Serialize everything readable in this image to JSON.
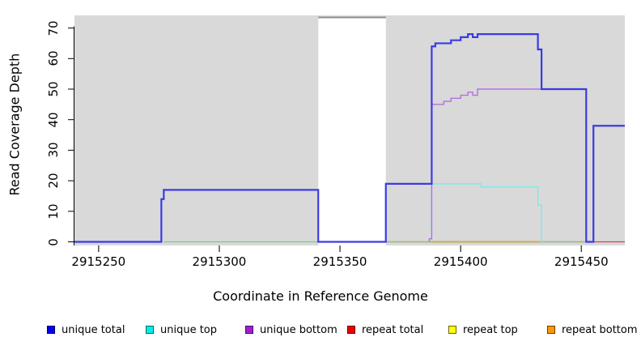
{
  "figure": {
    "x_title": "Coordinate in Reference Genome",
    "y_title": "Read Coverage Depth"
  },
  "chart_data": {
    "type": "line",
    "subtype": "step-function read coverage plot",
    "title": "",
    "xlabel": "Coordinate in Reference Genome",
    "ylabel": "Read Coverage Depth",
    "xlim": [
      2915240,
      2915468
    ],
    "ylim": [
      0,
      74
    ],
    "x_ticks": [
      2915250,
      2915300,
      2915350,
      2915400,
      2915450
    ],
    "y_ticks": [
      0,
      10,
      20,
      30,
      40,
      50,
      60,
      70
    ],
    "grid": false,
    "legend_position": "bottom",
    "plot_bg_color": "#d9d9d9",
    "masked_region": {
      "start": 2915341,
      "end": 2915369,
      "fill": "#ffffff",
      "top_border_color": "#8f8f8f"
    },
    "series": [
      {
        "name": "repeat top",
        "color": "#e6e600",
        "line_width": 1.3,
        "start_at_zero": false,
        "segments": [
          [
            2915369,
            2915434,
            0
          ]
        ]
      },
      {
        "name": "repeat total",
        "color": "#d4405c",
        "line_width": 1.3,
        "start_at_zero": false,
        "segments": [
          [
            2915369,
            2915387,
            0
          ],
          [
            2915455,
            2915468,
            0
          ]
        ]
      },
      {
        "name": "repeat bottom",
        "color": "#ff9417",
        "line_width": 1.8,
        "start_at_zero": false,
        "segments": [
          [
            2915387,
            2915434,
            0
          ]
        ]
      },
      {
        "name": "zero-baseline blend (overlapping zero lines)",
        "color": "#7bcb8c",
        "line_width": 1.3,
        "start_at_zero": false,
        "segments": [
          [
            2915277,
            2915341,
            0
          ],
          [
            2915434,
            2915452,
            0
          ]
        ]
      },
      {
        "name": "unique top",
        "color": "#7de9e9",
        "line_width": 1.4,
        "start_at_zero": true,
        "segments": [
          [
            2915388,
            2915408.5,
            19
          ],
          [
            2915408.5,
            2915432,
            18
          ],
          [
            2915432,
            2915433.5,
            12
          ],
          [
            2915433.5,
            2915434,
            0
          ]
        ]
      },
      {
        "name": "unique bottom",
        "color": "#b56fdf",
        "line_width": 1.4,
        "start_at_zero": true,
        "segments": [
          [
            2915387,
            2915388,
            1
          ],
          [
            2915388,
            2915393,
            45
          ],
          [
            2915393,
            2915396,
            46
          ],
          [
            2915396,
            2915400,
            47
          ],
          [
            2915400,
            2915403,
            48
          ],
          [
            2915403,
            2915405,
            49
          ],
          [
            2915405,
            2915407,
            48
          ],
          [
            2915407,
            2915452,
            50
          ],
          [
            2915452,
            2915455,
            0
          ]
        ]
      },
      {
        "name": "unique total",
        "color": "#3b3be6",
        "line_width": 2.2,
        "start_at_zero": false,
        "segments": [
          [
            2915240,
            2915276,
            0
          ],
          [
            2915276,
            2915277,
            14
          ],
          [
            2915277,
            2915341,
            17
          ],
          [
            2915341,
            2915369,
            0
          ],
          [
            2915369,
            2915388,
            19
          ],
          [
            2915388,
            2915389.5,
            64
          ],
          [
            2915389.5,
            2915396,
            65
          ],
          [
            2915396,
            2915400,
            66
          ],
          [
            2915400,
            2915403,
            67
          ],
          [
            2915403,
            2915405,
            68
          ],
          [
            2915405,
            2915407,
            67
          ],
          [
            2915407,
            2915432,
            68
          ],
          [
            2915432,
            2915433.5,
            63
          ],
          [
            2915433.5,
            2915452,
            50
          ],
          [
            2915452,
            2915455,
            0
          ],
          [
            2915455,
            2915468,
            38
          ]
        ]
      }
    ],
    "legend": [
      {
        "label": "unique total",
        "fill": "#0000ee",
        "border": "#000066"
      },
      {
        "label": "unique top",
        "fill": "#00eeee",
        "border": "#006666"
      },
      {
        "label": "unique bottom",
        "fill": "#a020d0",
        "border": "#4b0866"
      },
      {
        "label": "repeat total",
        "fill": "#ee0000",
        "border": "#660000"
      },
      {
        "label": "repeat top",
        "fill": "#ffff00",
        "border": "#666600"
      },
      {
        "label": "repeat bottom",
        "fill": "#ff9900",
        "border": "#663d00"
      }
    ]
  }
}
